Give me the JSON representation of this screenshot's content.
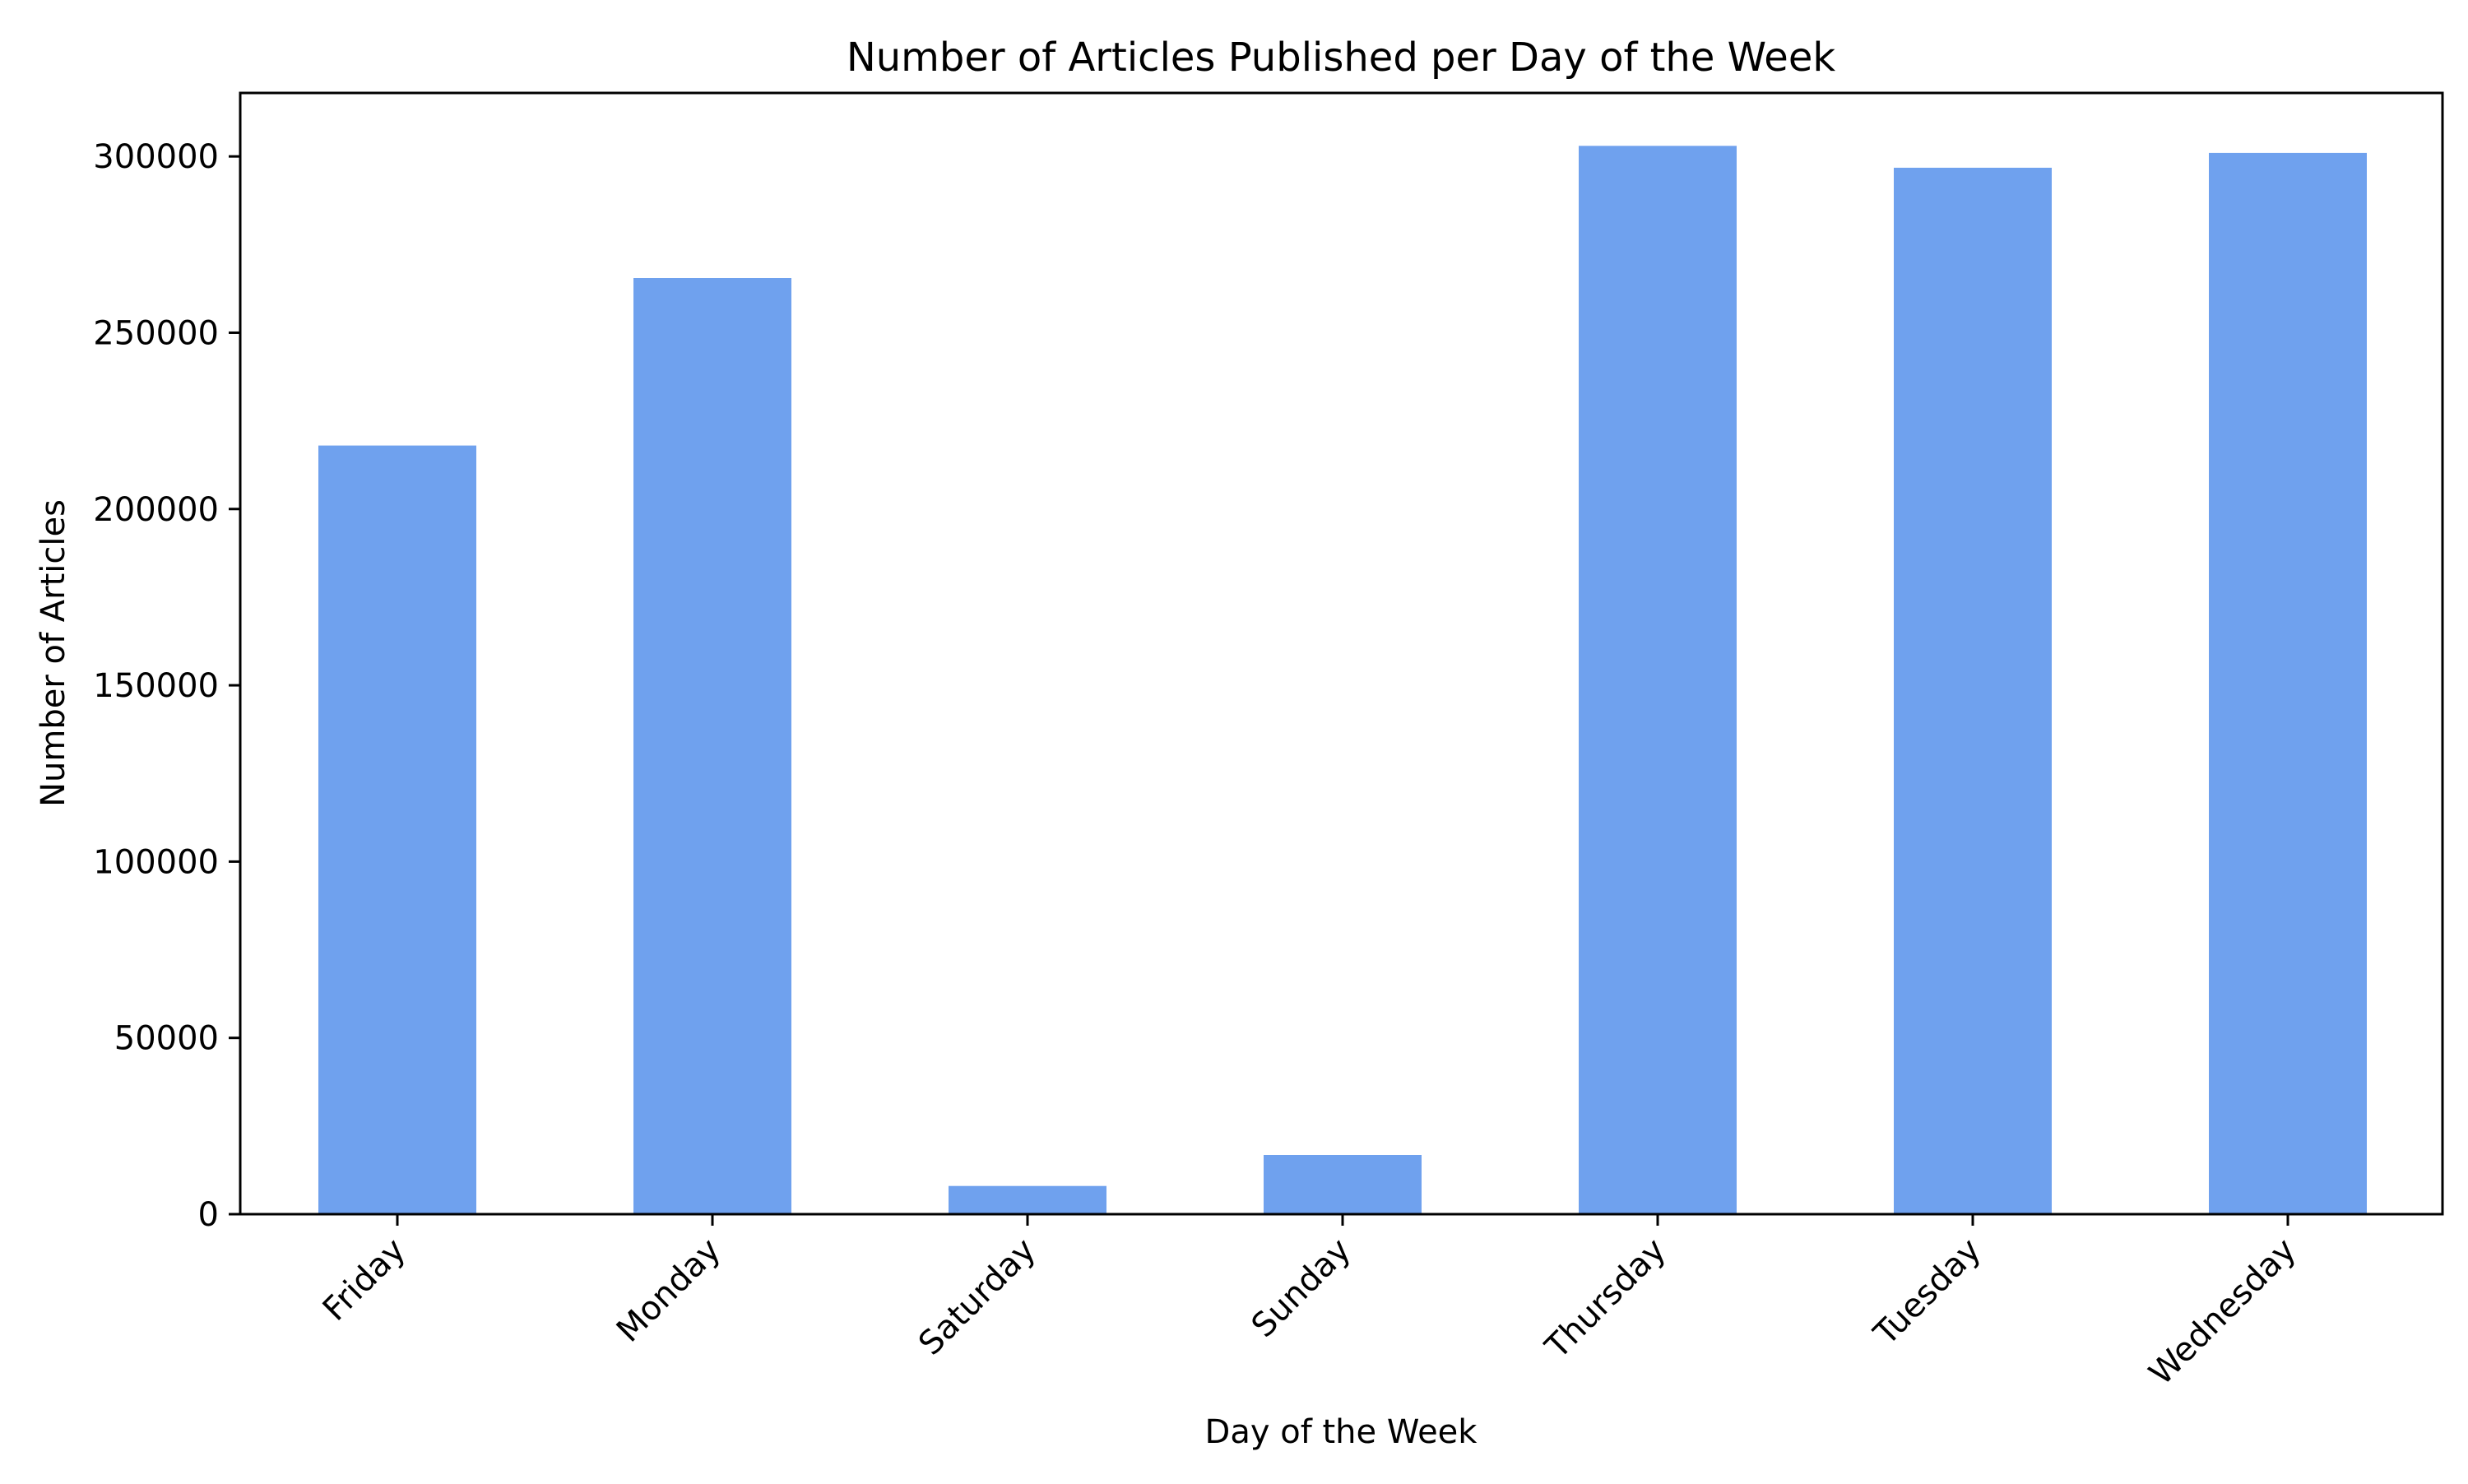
{
  "chart_data": {
    "type": "bar",
    "title": "Number of Articles Published per Day of the Week",
    "xlabel": "Day of the Week",
    "ylabel": "Number of Articles",
    "categories": [
      "Friday",
      "Monday",
      "Saturday",
      "Sunday",
      "Thursday",
      "Tuesday",
      "Wednesday"
    ],
    "values": [
      218000,
      265500,
      8000,
      16800,
      303000,
      296800,
      301000
    ],
    "ylim": [
      0,
      318000
    ],
    "yticks": [
      0,
      50000,
      100000,
      150000,
      200000,
      250000,
      300000
    ],
    "ytick_labels": [
      "0",
      "50000",
      "100000",
      "150000",
      "200000",
      "250000",
      "300000"
    ],
    "grid": false,
    "legend": "none",
    "bar_color": "#6fa1ee"
  }
}
